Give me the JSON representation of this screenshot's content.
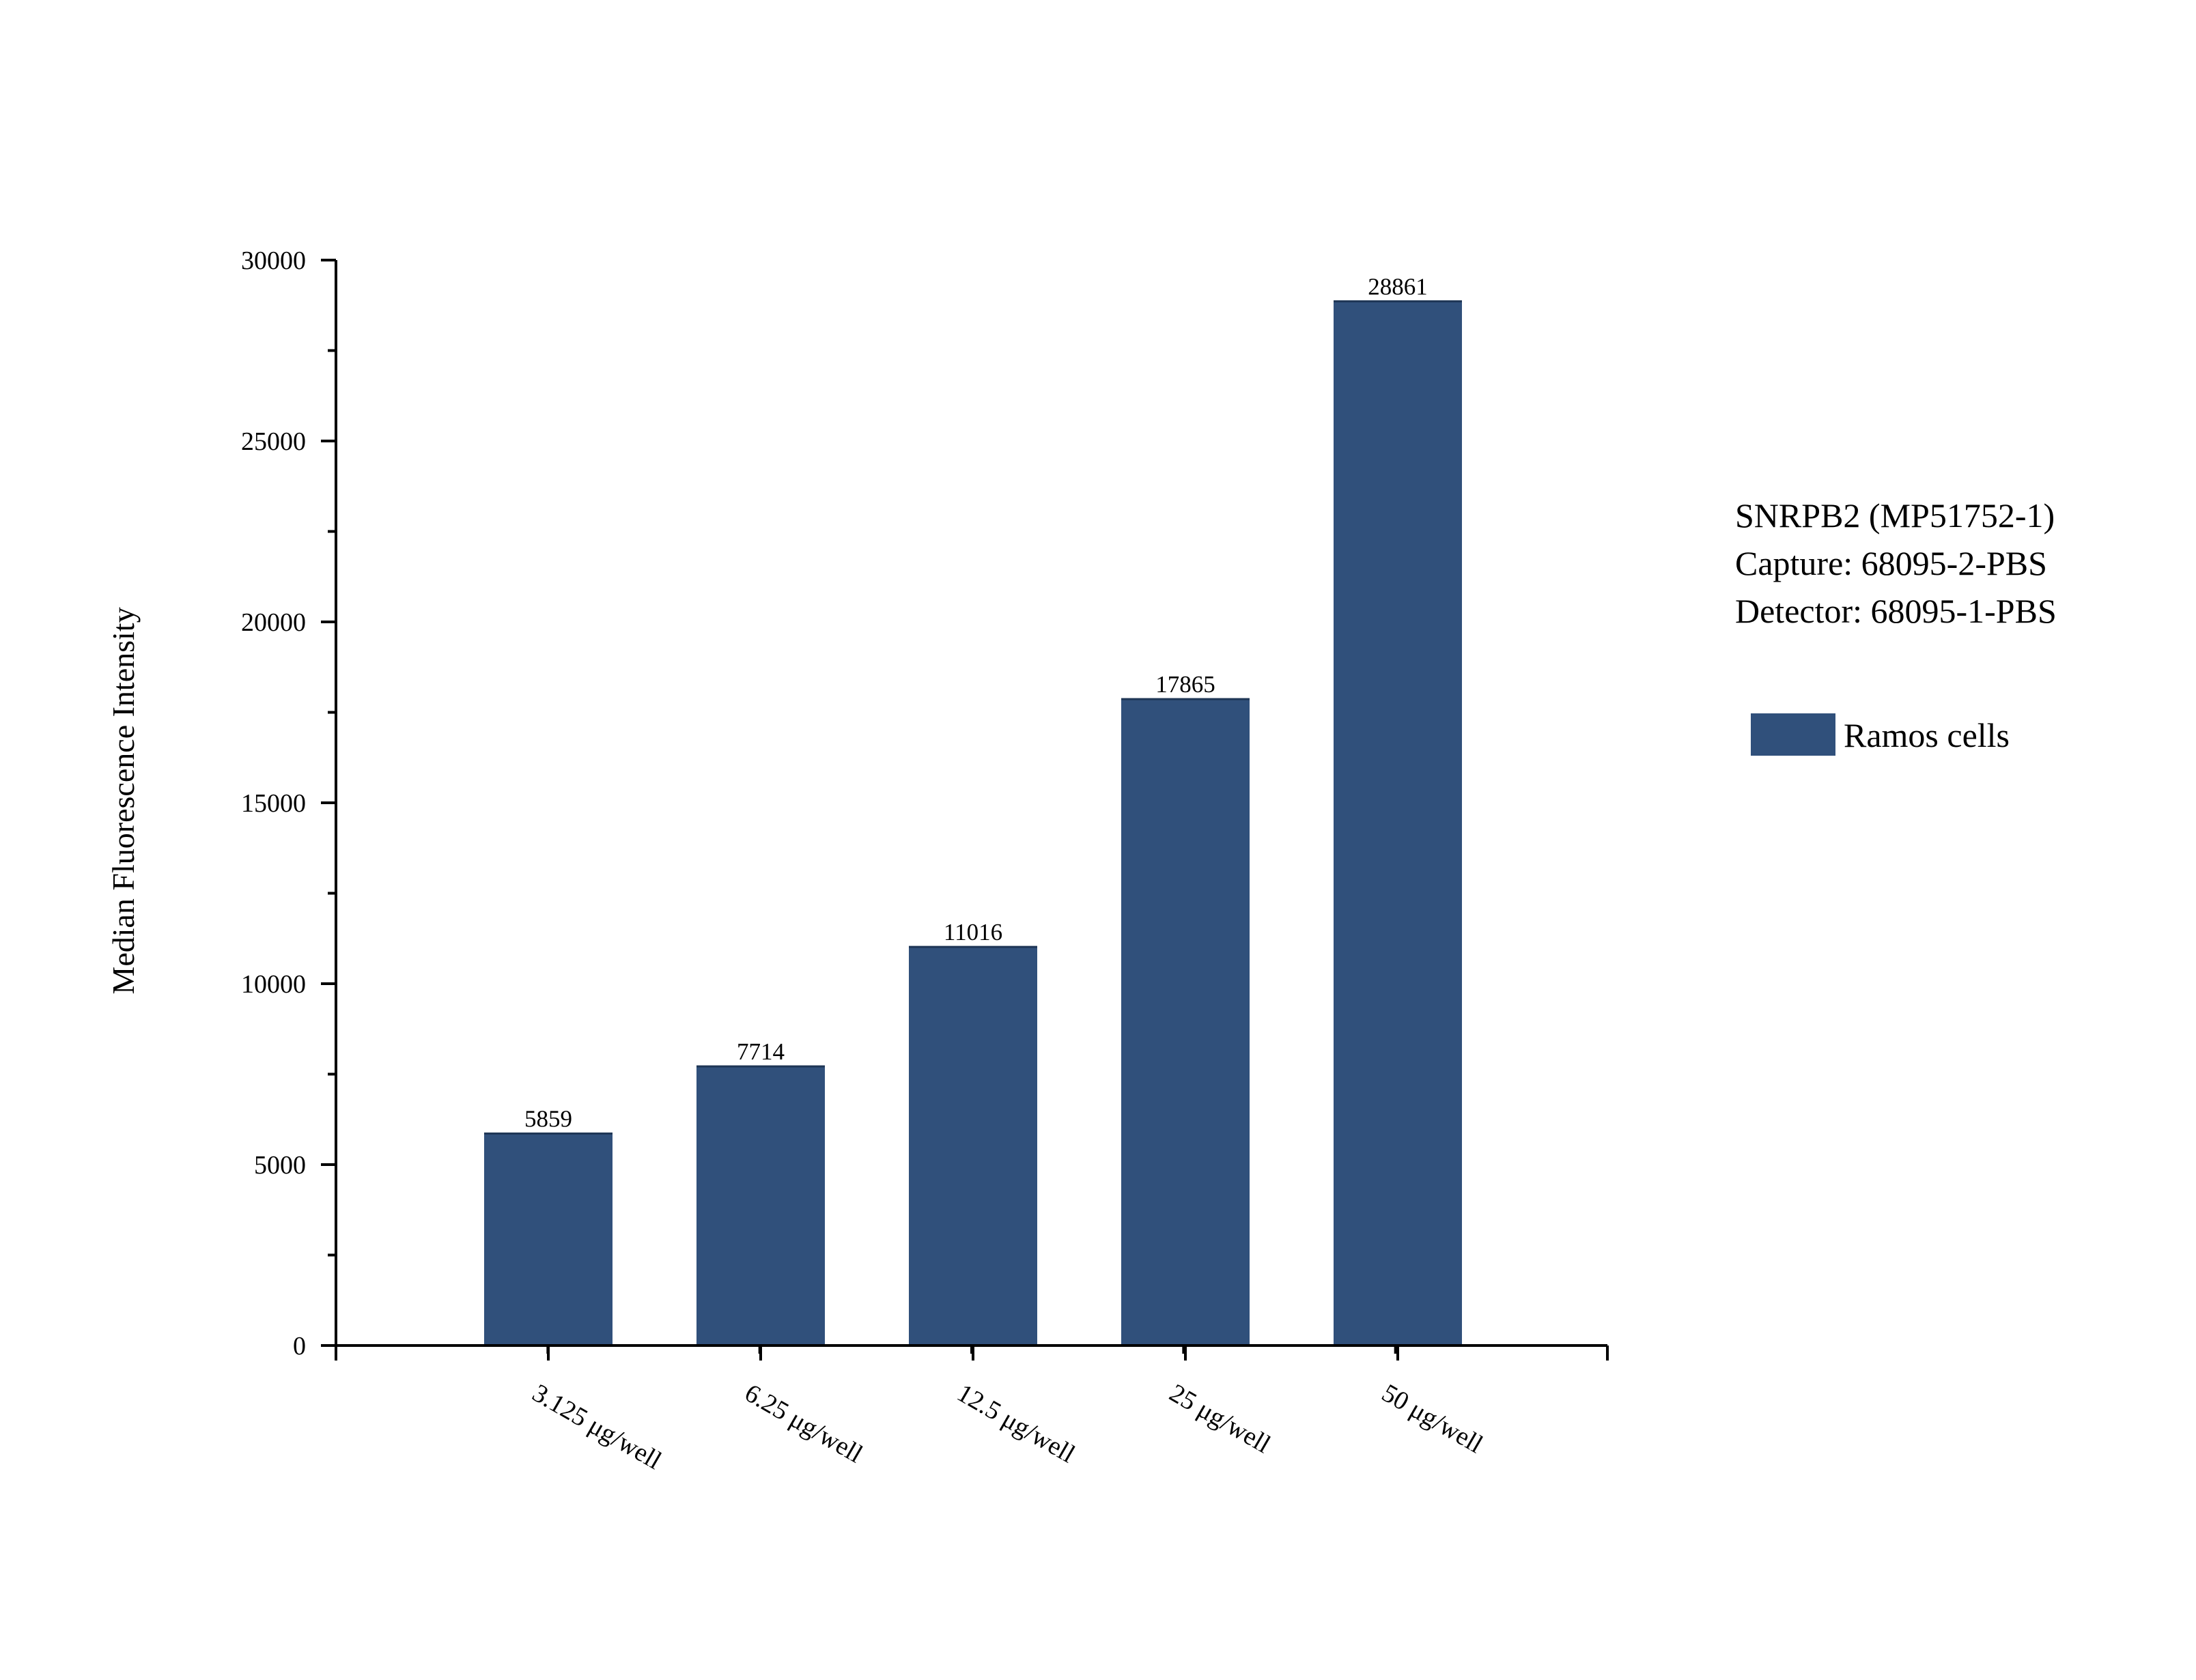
{
  "annotation": {
    "line1": "SNRPB2 (MP51752-1)",
    "line2": "Capture: 68095-2-PBS",
    "line3": "Detector: 68095-1-PBS"
  },
  "chart_data": {
    "type": "bar",
    "categories": [
      "3.125 μg/well",
      "6.25 μg/well",
      "12.5 μg/well",
      "25 μg/well",
      "50 μg/well"
    ],
    "series": [
      {
        "name": "Ramos cells",
        "values": [
          5859,
          7714,
          11016,
          17865,
          28861
        ],
        "color": "#30507b"
      }
    ],
    "data_labels": [
      "5859",
      "7714",
      "11016",
      "17865",
      "28861"
    ],
    "title": "",
    "xlabel": "",
    "ylabel": "Median Fluorescence Intensity",
    "ylim": [
      0,
      30000
    ],
    "yticks": [
      0,
      5000,
      10000,
      15000,
      20000,
      25000,
      30000
    ],
    "ytick_labels": [
      "0",
      "5000",
      "10000",
      "15000",
      "20000",
      "25000",
      "30000"
    ],
    "grid": false,
    "legend_position": "right"
  }
}
